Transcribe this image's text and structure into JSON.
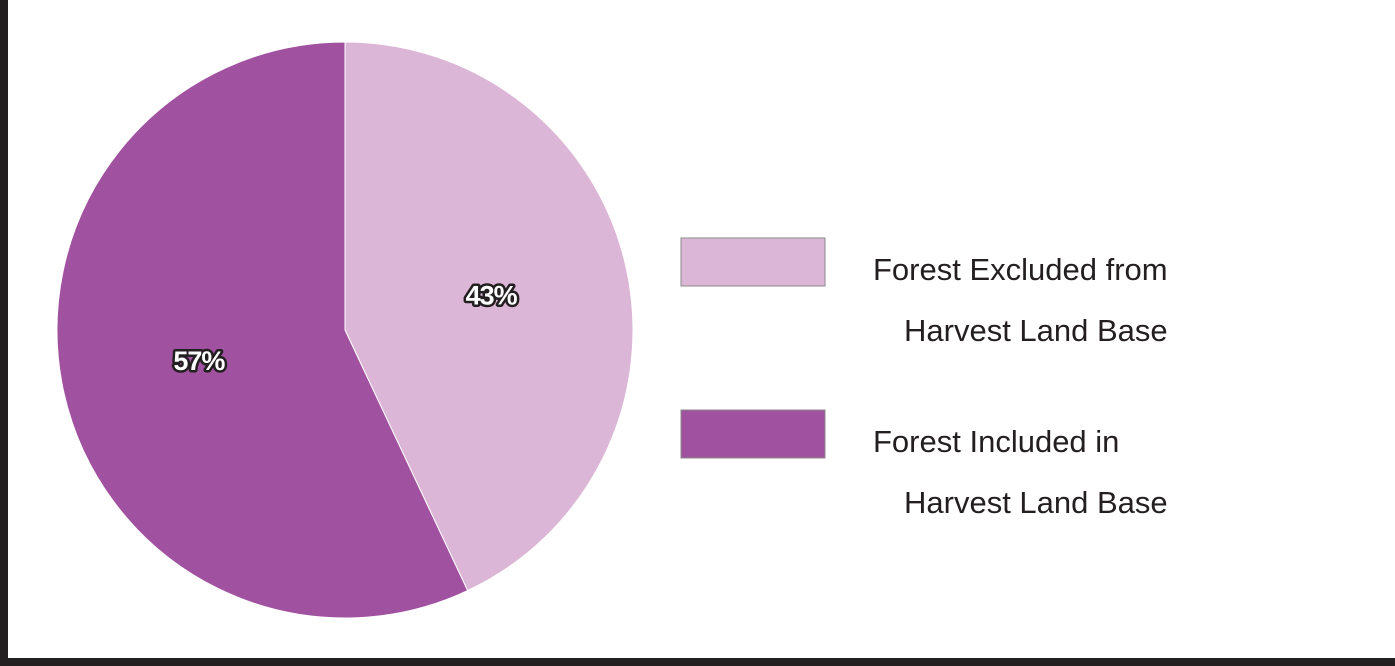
{
  "chart_data": {
    "type": "pie",
    "slices": [
      {
        "label_lines": [
          "Forest Excluded from",
          "Harvest Land Base"
        ],
        "value": 43,
        "display": "43%",
        "color": "#dcb6d6"
      },
      {
        "label_lines": [
          "Forest Included in",
          "Harvest Land Base"
        ],
        "value": 57,
        "display": "57%",
        "color": "#a0519f"
      }
    ],
    "start_angle": "12 o'clock",
    "direction": "clockwise",
    "legend_position": "right"
  },
  "colors": {
    "frame": "#231f20",
    "background": "#ffffff",
    "slice_edge": "#ffffff"
  }
}
